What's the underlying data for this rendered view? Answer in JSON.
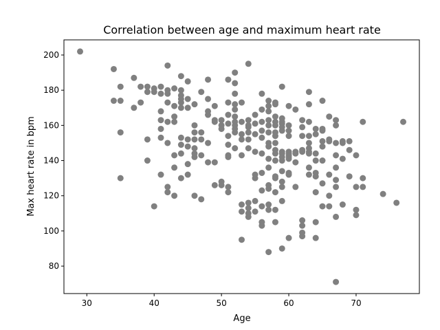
{
  "chart_data": {
    "type": "scatter",
    "title": "Correlation between age and maximum heart rate",
    "xlabel": "Age",
    "ylabel": "Max heart rate in bpm",
    "xlim": [
      26.6,
      79.4
    ],
    "ylim": [
      64.4,
      208.6
    ],
    "xticks": [
      30,
      40,
      50,
      60,
      70
    ],
    "yticks": [
      80,
      100,
      120,
      140,
      160,
      180,
      200
    ],
    "grid": false,
    "legend": "none",
    "marker_color": "#808080",
    "points": [
      [
        29,
        202
      ],
      [
        34,
        192
      ],
      [
        34,
        174
      ],
      [
        35,
        182
      ],
      [
        35,
        174
      ],
      [
        35,
        156
      ],
      [
        35,
        130
      ],
      [
        37,
        187
      ],
      [
        37,
        170
      ],
      [
        38,
        182
      ],
      [
        38,
        173
      ],
      [
        39,
        182
      ],
      [
        39,
        179
      ],
      [
        39,
        152
      ],
      [
        39,
        140
      ],
      [
        40,
        181
      ],
      [
        40,
        179
      ],
      [
        40,
        114
      ],
      [
        41,
        182
      ],
      [
        41,
        178
      ],
      [
        41,
        168
      ],
      [
        41,
        163
      ],
      [
        41,
        158
      ],
      [
        41,
        153
      ],
      [
        41,
        132
      ],
      [
        42,
        194
      ],
      [
        42,
        180
      ],
      [
        42,
        178
      ],
      [
        42,
        173
      ],
      [
        42,
        162
      ],
      [
        42,
        150
      ],
      [
        42,
        125
      ],
      [
        42,
        122
      ],
      [
        43,
        181
      ],
      [
        43,
        171
      ],
      [
        43,
        165
      ],
      [
        43,
        162
      ],
      [
        43,
        143
      ],
      [
        43,
        136
      ],
      [
        43,
        120
      ],
      [
        44,
        188
      ],
      [
        44,
        180
      ],
      [
        44,
        177
      ],
      [
        44,
        175
      ],
      [
        44,
        173
      ],
      [
        44,
        170
      ],
      [
        44,
        153
      ],
      [
        44,
        149
      ],
      [
        44,
        144
      ],
      [
        44,
        130
      ],
      [
        45,
        185
      ],
      [
        45,
        175
      ],
      [
        45,
        170
      ],
      [
        45,
        152
      ],
      [
        45,
        148
      ],
      [
        45,
        138
      ],
      [
        45,
        132
      ],
      [
        46,
        172
      ],
      [
        46,
        160
      ],
      [
        46,
        156
      ],
      [
        46,
        152
      ],
      [
        46,
        147
      ],
      [
        46,
        144
      ],
      [
        46,
        142
      ],
      [
        46,
        120
      ],
      [
        47,
        179
      ],
      [
        47,
        156
      ],
      [
        47,
        152
      ],
      [
        47,
        143
      ],
      [
        47,
        118
      ],
      [
        48,
        186
      ],
      [
        48,
        175
      ],
      [
        48,
        168
      ],
      [
        48,
        166
      ],
      [
        48,
        150
      ],
      [
        48,
        139
      ],
      [
        49,
        171
      ],
      [
        49,
        163
      ],
      [
        49,
        162
      ],
      [
        49,
        139
      ],
      [
        49,
        126
      ],
      [
        50,
        163
      ],
      [
        50,
        160
      ],
      [
        50,
        158
      ],
      [
        50,
        128
      ],
      [
        50,
        126
      ],
      [
        51,
        186
      ],
      [
        51,
        173
      ],
      [
        51,
        166
      ],
      [
        51,
        161
      ],
      [
        51,
        154
      ],
      [
        51,
        149
      ],
      [
        51,
        143
      ],
      [
        51,
        142
      ],
      [
        51,
        125
      ],
      [
        51,
        122
      ],
      [
        52,
        190
      ],
      [
        52,
        184
      ],
      [
        52,
        178
      ],
      [
        52,
        172
      ],
      [
        52,
        169
      ],
      [
        52,
        165
      ],
      [
        52,
        162
      ],
      [
        52,
        160
      ],
      [
        52,
        158
      ],
      [
        52,
        156
      ],
      [
        52,
        147
      ],
      [
        53,
        173
      ],
      [
        53,
        162
      ],
      [
        53,
        155
      ],
      [
        53,
        152
      ],
      [
        53,
        143
      ],
      [
        53,
        115
      ],
      [
        53,
        111
      ],
      [
        53,
        95
      ],
      [
        54,
        195
      ],
      [
        54,
        163
      ],
      [
        54,
        160
      ],
      [
        54,
        159
      ],
      [
        54,
        156
      ],
      [
        54,
        152
      ],
      [
        54,
        147
      ],
      [
        54,
        116
      ],
      [
        54,
        113
      ],
      [
        54,
        110
      ],
      [
        54,
        108
      ],
      [
        55,
        166
      ],
      [
        55,
        161
      ],
      [
        55,
        155
      ],
      [
        55,
        145
      ],
      [
        55,
        132
      ],
      [
        55,
        130
      ],
      [
        55,
        117
      ],
      [
        55,
        111
      ],
      [
        56,
        178
      ],
      [
        56,
        169
      ],
      [
        56,
        162
      ],
      [
        56,
        157
      ],
      [
        56,
        153
      ],
      [
        56,
        144
      ],
      [
        56,
        133
      ],
      [
        56,
        123
      ],
      [
        56,
        114
      ],
      [
        56,
        105
      ],
      [
        56,
        103
      ],
      [
        57,
        174
      ],
      [
        57,
        171
      ],
      [
        57,
        168
      ],
      [
        57,
        163
      ],
      [
        57,
        160
      ],
      [
        57,
        156
      ],
      [
        57,
        150
      ],
      [
        57,
        148
      ],
      [
        57,
        141
      ],
      [
        57,
        136
      ],
      [
        57,
        126
      ],
      [
        57,
        124
      ],
      [
        57,
        115
      ],
      [
        57,
        112
      ],
      [
        57,
        88
      ],
      [
        58,
        173
      ],
      [
        58,
        172
      ],
      [
        58,
        165
      ],
      [
        58,
        162
      ],
      [
        58,
        160
      ],
      [
        58,
        156
      ],
      [
        58,
        154
      ],
      [
        58,
        150
      ],
      [
        58,
        146
      ],
      [
        58,
        144
      ],
      [
        58,
        140
      ],
      [
        58,
        131
      ],
      [
        58,
        130
      ],
      [
        58,
        122
      ],
      [
        58,
        112
      ],
      [
        58,
        105
      ],
      [
        59,
        182
      ],
      [
        59,
        164
      ],
      [
        59,
        162
      ],
      [
        59,
        161
      ],
      [
        59,
        159
      ],
      [
        59,
        157
      ],
      [
        59,
        145
      ],
      [
        59,
        144
      ],
      [
        59,
        142
      ],
      [
        59,
        140
      ],
      [
        59,
        134
      ],
      [
        59,
        128
      ],
      [
        59,
        125
      ],
      [
        59,
        117
      ],
      [
        59,
        90
      ],
      [
        60,
        171
      ],
      [
        60,
        160
      ],
      [
        60,
        157
      ],
      [
        60,
        154
      ],
      [
        60,
        145
      ],
      [
        60,
        144
      ],
      [
        60,
        143
      ],
      [
        60,
        142
      ],
      [
        60,
        141
      ],
      [
        60,
        133
      ],
      [
        60,
        132
      ],
      [
        60,
        96
      ],
      [
        61,
        169
      ],
      [
        61,
        145
      ],
      [
        61,
        144
      ],
      [
        61,
        139
      ],
      [
        61,
        125
      ],
      [
        62,
        163
      ],
      [
        62,
        159
      ],
      [
        62,
        154
      ],
      [
        62,
        146
      ],
      [
        62,
        145
      ],
      [
        62,
        106
      ],
      [
        62,
        103
      ],
      [
        62,
        99
      ],
      [
        62,
        97
      ],
      [
        63,
        179
      ],
      [
        63,
        172
      ],
      [
        63,
        162
      ],
      [
        63,
        154
      ],
      [
        63,
        150
      ],
      [
        63,
        147
      ],
      [
        63,
        145
      ],
      [
        63,
        144
      ],
      [
        63,
        136
      ],
      [
        63,
        132
      ],
      [
        64,
        158
      ],
      [
        64,
        155
      ],
      [
        64,
        144
      ],
      [
        64,
        140
      ],
      [
        64,
        133
      ],
      [
        64,
        131
      ],
      [
        64,
        122
      ],
      [
        64,
        105
      ],
      [
        64,
        96
      ],
      [
        65,
        174
      ],
      [
        65,
        158
      ],
      [
        65,
        157
      ],
      [
        65,
        151
      ],
      [
        65,
        148
      ],
      [
        65,
        140
      ],
      [
        65,
        127
      ],
      [
        65,
        114
      ],
      [
        66,
        165
      ],
      [
        66,
        152
      ],
      [
        66,
        151
      ],
      [
        66,
        132
      ],
      [
        66,
        120
      ],
      [
        66,
        114
      ],
      [
        67,
        163
      ],
      [
        67,
        160
      ],
      [
        67,
        150
      ],
      [
        67,
        143
      ],
      [
        67,
        136
      ],
      [
        67,
        129
      ],
      [
        67,
        125
      ],
      [
        67,
        108
      ],
      [
        67,
        71
      ],
      [
        68,
        151
      ],
      [
        68,
        150
      ],
      [
        68,
        141
      ],
      [
        68,
        115
      ],
      [
        69,
        151
      ],
      [
        69,
        146
      ],
      [
        69,
        131
      ],
      [
        70,
        143
      ],
      [
        70,
        125
      ],
      [
        70,
        112
      ],
      [
        70,
        109
      ],
      [
        71,
        162
      ],
      [
        71,
        130
      ],
      [
        71,
        125
      ],
      [
        74,
        121
      ],
      [
        76,
        116
      ],
      [
        77,
        162
      ]
    ]
  }
}
